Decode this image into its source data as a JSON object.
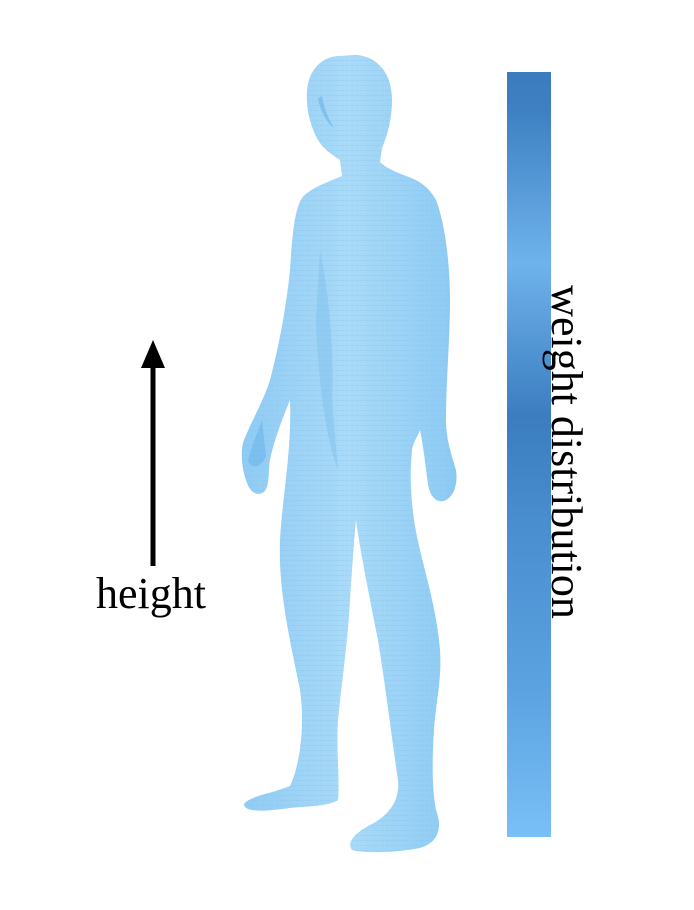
{
  "labels": {
    "height": "height",
    "weight_distribution": "weight distribution"
  },
  "colors": {
    "body_fill": "#9dd2f5",
    "body_shade": "#7ec3ee",
    "bar_light": "#6fb6ee",
    "bar_dark": "#3a7fc0",
    "arrow": "#000000"
  },
  "icons": {
    "figure": "human-body-voxel-icon",
    "arrow": "arrow-up-icon"
  }
}
